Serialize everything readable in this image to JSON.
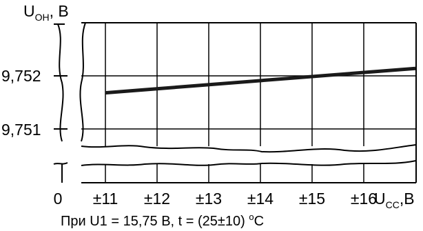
{
  "chart_data": {
    "type": "line",
    "y_axis_label": {
      "main": "U",
      "sub": "OH",
      "suffix": ", B"
    },
    "x_axis_label": {
      "main": "U",
      "sub": "CC",
      "suffix": ",B"
    },
    "y_ticks": [
      "9,752",
      "9,751"
    ],
    "y_tick_values": [
      9.752,
      9.751
    ],
    "x_tick_zero": "0",
    "x_ticks": [
      "±11",
      "±12",
      "±13",
      "±14",
      "±15",
      "±16"
    ],
    "x_tick_values": [
      11,
      12,
      13,
      14,
      15,
      16
    ],
    "ylim_visible": [
      9.7506,
      9.7525
    ],
    "axis_breaks": {
      "x": true,
      "y": true
    },
    "grid": true,
    "series": [
      {
        "x": [
          11,
          17
        ],
        "y": [
          9.75168,
          9.75214
        ],
        "color": "#1a1a1a"
      }
    ],
    "condition_note": {
      "prefix": "При U1 = 15,75 В,  t = (25±10) ",
      "superscript": "о",
      "unit": "С"
    }
  }
}
